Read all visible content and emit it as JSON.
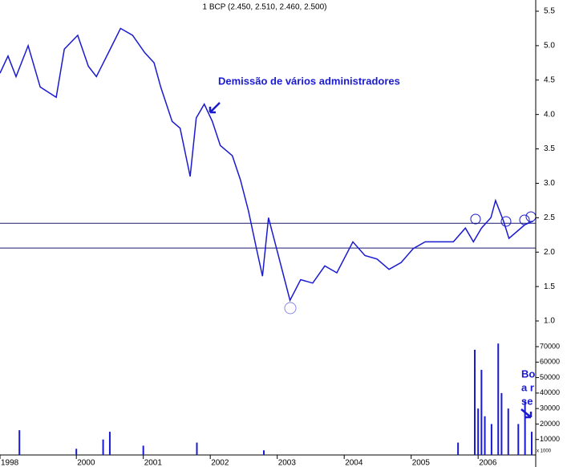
{
  "chart_data": [
    {
      "type": "line",
      "title": "1 BCP (2.450, 2.510, 2.460, 2.500)",
      "annotation": "Demissão de vários administradores",
      "side_note": [
        "Bo",
        "a r",
        "se"
      ],
      "color": "#1a1ad0",
      "series": [
        {
          "name": "BCP",
          "color": "#1a1ad0",
          "x": [
            1998.86,
            1998.98,
            1999.1,
            1999.28,
            1999.46,
            1999.7,
            1999.82,
            2000.02,
            2000.18,
            2000.3,
            2000.48,
            2000.66,
            2000.84,
            2001.02,
            2001.16,
            2001.26,
            2001.43,
            2001.55,
            2001.7,
            2001.79,
            2001.91,
            2002.03,
            2002.15,
            2002.33,
            2002.45,
            2002.57,
            2002.69,
            2002.78,
            2002.87,
            2002.99,
            2003.11,
            2003.19,
            2003.35,
            2003.53,
            2003.71,
            2003.89,
            2004.13,
            2004.31,
            2004.49,
            2004.67,
            2004.85,
            2005.03,
            2005.21,
            2005.45,
            2005.63,
            2005.81,
            2005.93,
            2006.05,
            2006.19,
            2006.26,
            2006.38,
            2006.46,
            2006.58,
            2006.7,
            2006.82
          ],
          "values": [
            4.6,
            4.85,
            4.55,
            5.0,
            4.4,
            4.25,
            4.95,
            5.15,
            4.7,
            4.55,
            4.9,
            5.25,
            5.15,
            4.9,
            4.75,
            4.4,
            3.9,
            3.8,
            3.1,
            3.95,
            4.15,
            3.9,
            3.55,
            3.4,
            3.05,
            2.6,
            2.05,
            1.65,
            2.5,
            2.05,
            1.6,
            1.3,
            1.6,
            1.55,
            1.8,
            1.7,
            2.15,
            1.95,
            1.9,
            1.75,
            1.85,
            2.05,
            2.15,
            2.15,
            2.15,
            2.35,
            2.15,
            2.35,
            2.5,
            2.75,
            2.45,
            2.2,
            2.3,
            2.4,
            2.45
          ]
        }
      ],
      "hlines": [
        2.42,
        2.06
      ],
      "xlim": [
        1998.86,
        2006.86
      ],
      "xticks": [
        {
          "value": 1998.86,
          "label": "1998"
        },
        2000,
        2001,
        2002,
        2003,
        2004,
        2005,
        2006
      ],
      "ylim": [
        1.0,
        5.5
      ],
      "yticks": [
        {
          "value": 1,
          "label": "1.0"
        },
        1.5,
        {
          "value": 2,
          "label": "2.0"
        },
        2.5,
        {
          "value": 3,
          "label": "3.0"
        },
        3.5,
        {
          "value": 4,
          "label": "4.0"
        },
        4.5,
        {
          "value": 5,
          "label": "5.0"
        },
        5.5
      ]
    },
    {
      "type": "bar",
      "color": "#1a1ad0",
      "unit_label": "x 1000",
      "x": [
        1999.15,
        2000.0,
        2000.4,
        2000.5,
        2001.0,
        2001.8,
        2002.8,
        2005.7,
        2005.95,
        2006.0,
        2006.05,
        2006.1,
        2006.2,
        2006.3,
        2006.35,
        2006.45,
        2006.6,
        2006.7,
        2006.8
      ],
      "values": [
        16000,
        4000,
        10000,
        15000,
        6000,
        8000,
        3000,
        8000,
        68000,
        30000,
        55000,
        25000,
        20000,
        72000,
        40000,
        30000,
        20000,
        35000,
        15000
      ],
      "xlim": [
        1998.86,
        2006.86
      ],
      "ylim": [
        0,
        70000
      ],
      "yticks": [
        10000,
        20000,
        30000,
        40000,
        50000,
        60000,
        70000
      ]
    }
  ]
}
